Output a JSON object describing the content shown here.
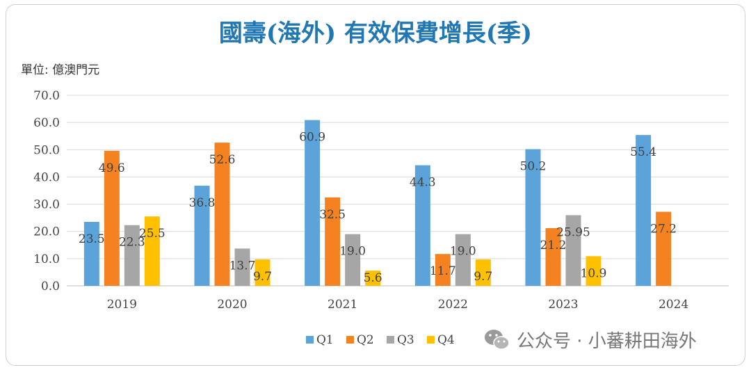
{
  "title": "國壽(海外) 有效保費增長(季)",
  "unit_label": "單位: 億澳門元",
  "watermark": {
    "icon": "wechat-icon",
    "text": "公众号 · 小蕃耕田海外"
  },
  "colors": {
    "Q1": "#5ba3d9",
    "Q2": "#f58220",
    "Q3": "#a6a6a6",
    "Q4": "#ffc000",
    "title": "#1f77b4"
  },
  "chart_data": {
    "type": "bar",
    "categories": [
      "2019",
      "2020",
      "2021",
      "2022",
      "2023",
      "2024"
    ],
    "series": [
      {
        "name": "Q1",
        "values": [
          23.5,
          36.8,
          60.9,
          44.3,
          50.2,
          55.4
        ],
        "labels": [
          "23.5",
          "36.8",
          "60.9",
          "44.3",
          "50.2",
          "55.4"
        ]
      },
      {
        "name": "Q2",
        "values": [
          49.6,
          52.6,
          32.5,
          11.7,
          21.2,
          27.2
        ],
        "labels": [
          "49.6",
          "52.6",
          "32.5",
          "11.7",
          "21.2",
          "27.2"
        ]
      },
      {
        "name": "Q3",
        "values": [
          22.3,
          13.7,
          19.0,
          19.0,
          25.95,
          null
        ],
        "labels": [
          "22.3",
          "13.7",
          "19.0",
          "19.0",
          "25.95",
          ""
        ]
      },
      {
        "name": "Q4",
        "values": [
          25.5,
          9.7,
          5.6,
          9.7,
          10.9,
          null
        ],
        "labels": [
          "25.5",
          "9.7",
          "5.6",
          "9.7",
          "10.9",
          ""
        ]
      }
    ],
    "ylim": [
      0,
      70
    ],
    "yticks": [
      "0.0",
      "10.0",
      "20.0",
      "30.0",
      "40.0",
      "50.0",
      "60.0",
      "70.0"
    ],
    "grid": true,
    "legend_position": "bottom-center"
  }
}
